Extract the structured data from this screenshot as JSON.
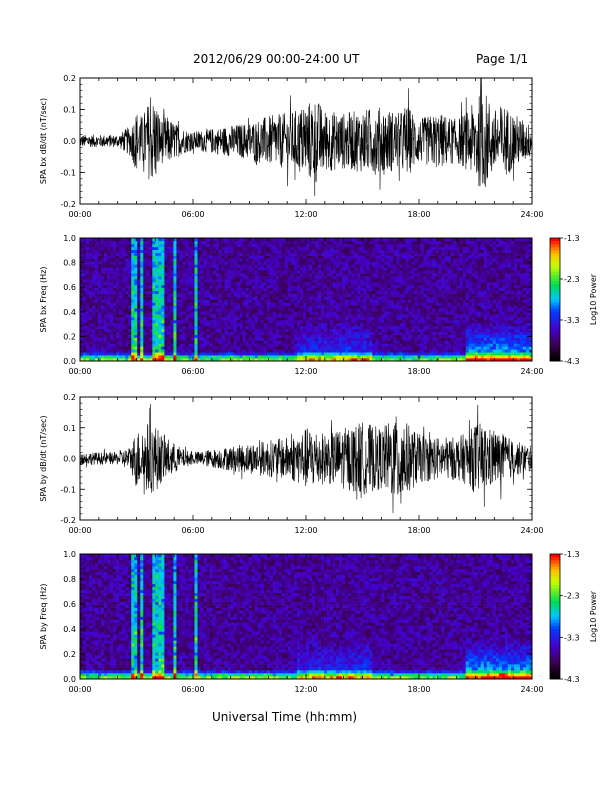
{
  "header": {
    "title": "2012/06/29  00:00-24:00 UT",
    "page": "Page 1/1"
  },
  "xlabel": "Universal Time (hh:mm)",
  "chart_data": [
    {
      "type": "line",
      "panel": "bx_waveform",
      "ylabel": "SPA bx dB/dt (nT/sec)",
      "xlim": [
        0,
        24
      ],
      "ylim": [
        -0.2,
        0.2
      ],
      "xticks": [
        "00:00",
        "06:00",
        "12:00",
        "18:00",
        "24:00"
      ],
      "yticks": [
        "-0.2",
        "-0.1",
        "0.0",
        "0.1",
        "0.2"
      ],
      "color": "#000000",
      "envelope": {
        "x_hours": [
          0,
          1,
          2,
          2.7,
          3,
          3.3,
          3.6,
          4,
          4.3,
          4.6,
          5,
          5.5,
          6,
          7,
          8,
          9,
          10,
          11,
          11.5,
          12,
          12.5,
          13,
          14,
          15,
          16,
          17,
          17.3,
          18,
          19,
          20,
          20.7,
          21,
          21.5,
          22,
          22.5,
          23,
          24
        ],
        "amplitude": [
          0.02,
          0.02,
          0.02,
          0.05,
          0.1,
          0.08,
          0.12,
          0.14,
          0.07,
          0.08,
          0.06,
          0.04,
          0.03,
          0.04,
          0.05,
          0.06,
          0.08,
          0.09,
          0.1,
          0.12,
          0.14,
          0.1,
          0.09,
          0.1,
          0.11,
          0.09,
          0.12,
          0.07,
          0.09,
          0.07,
          0.1,
          0.14,
          0.16,
          0.1,
          0.12,
          0.09,
          0.05
        ]
      }
    },
    {
      "type": "heatmap",
      "panel": "bx_spectrogram",
      "ylabel": "SPA bx Freq (Hz)",
      "xlim": [
        0,
        24
      ],
      "ylim": [
        0,
        1.0
      ],
      "xticks": [
        "00:00",
        "06:00",
        "12:00",
        "18:00",
        "24:00"
      ],
      "yticks": [
        "0.0",
        "0.2",
        "0.4",
        "0.6",
        "0.8",
        "1.0"
      ],
      "colorbar": {
        "label": "Log10 Power",
        "range": [
          -4.3,
          -1.3
        ],
        "ticks": [
          "-1.3",
          "-2.3",
          "-3.3",
          "-4.3"
        ]
      },
      "activity_hours": [
        2.8,
        3.0,
        3.3,
        3.9,
        4.1,
        4.3,
        5.0,
        6.2
      ],
      "enhanced_intervals": [
        [
          11.5,
          15.5
        ],
        [
          20.5,
          24
        ]
      ]
    },
    {
      "type": "line",
      "panel": "by_waveform",
      "ylabel": "SPA by dB/dt (nT/sec)",
      "xlim": [
        0,
        24
      ],
      "ylim": [
        -0.2,
        0.2
      ],
      "xticks": [
        "00:00",
        "06:00",
        "12:00",
        "18:00",
        "24:00"
      ],
      "yticks": [
        "-0.2",
        "-0.1",
        "0.0",
        "0.1",
        "0.2"
      ],
      "color": "#000000",
      "envelope": {
        "x_hours": [
          0,
          1,
          2,
          2.7,
          3,
          3.3,
          3.6,
          4,
          4.3,
          4.6,
          5,
          5.5,
          6,
          7,
          8,
          9,
          10,
          11,
          11.5,
          12,
          12.5,
          13,
          14,
          15,
          16,
          16.8,
          17,
          17.3,
          18,
          19,
          20,
          20.7,
          21,
          21.5,
          22,
          22.5,
          23,
          24
        ],
        "amplitude": [
          0.02,
          0.02,
          0.02,
          0.04,
          0.1,
          0.08,
          0.12,
          0.11,
          0.08,
          0.07,
          0.05,
          0.03,
          0.02,
          0.03,
          0.04,
          0.05,
          0.06,
          0.07,
          0.08,
          0.1,
          0.1,
          0.08,
          0.1,
          0.12,
          0.1,
          0.14,
          0.2,
          0.12,
          0.08,
          0.07,
          0.07,
          0.09,
          0.12,
          0.11,
          0.09,
          0.08,
          0.06,
          0.04
        ]
      }
    },
    {
      "type": "heatmap",
      "panel": "by_spectrogram",
      "ylabel": "SPA by Freq (Hz)",
      "xlim": [
        0,
        24
      ],
      "ylim": [
        0,
        1.0
      ],
      "xticks": [
        "00:00",
        "06:00",
        "12:00",
        "18:00",
        "24:00"
      ],
      "yticks": [
        "0.0",
        "0.2",
        "0.4",
        "0.6",
        "0.8",
        "1.0"
      ],
      "colorbar": {
        "label": "Log10 Power",
        "range": [
          -4.3,
          -1.3
        ],
        "ticks": [
          "-1.3",
          "-2.3",
          "-3.3",
          "-4.3"
        ]
      },
      "activity_hours": [
        2.8,
        3.0,
        3.3,
        3.9,
        4.1,
        4.3,
        5.0,
        6.2
      ],
      "enhanced_intervals": [
        [
          11.5,
          15.5
        ],
        [
          20.5,
          24
        ]
      ]
    }
  ]
}
